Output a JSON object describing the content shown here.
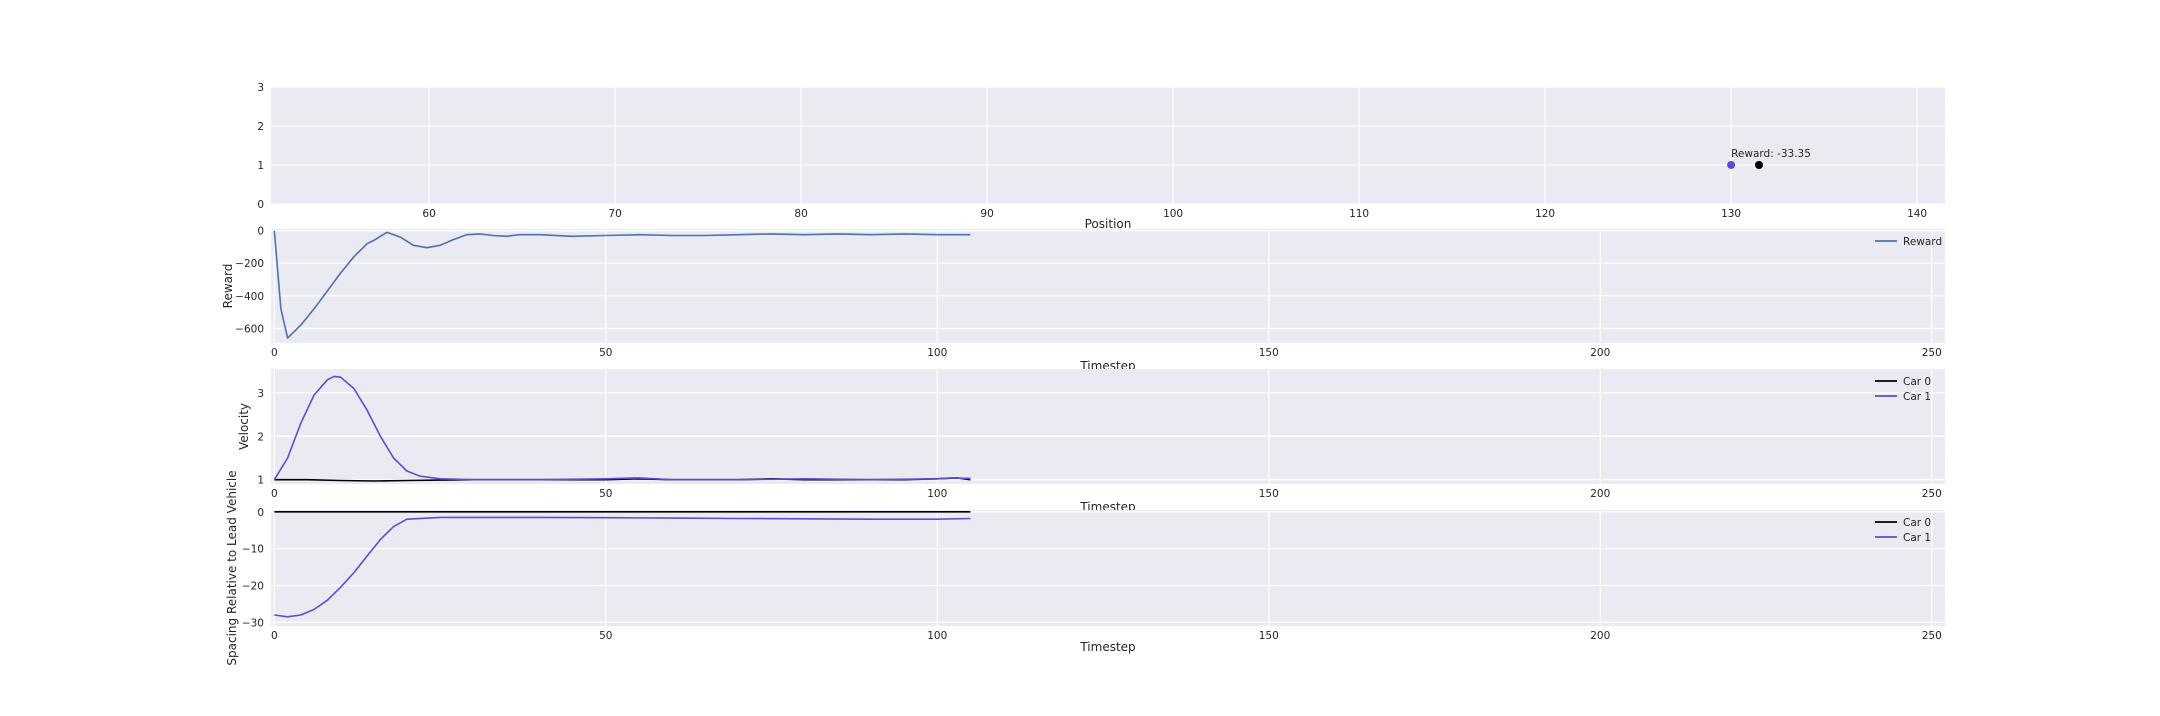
{
  "chart_data": [
    {
      "id": "position",
      "type": "scatter",
      "xlabel": "Position",
      "ylabel": "",
      "xlim": [
        51.5,
        141.5
      ],
      "ylim": [
        0,
        3
      ],
      "xticks": [
        60,
        70,
        80,
        90,
        100,
        110,
        120,
        130,
        140
      ],
      "yticks": [
        0,
        1,
        2,
        3
      ],
      "points": [
        {
          "x": 130.0,
          "y": 1,
          "color": "#5a4fcf"
        },
        {
          "x": 131.5,
          "y": 1,
          "color": "#000000"
        }
      ],
      "annotation": {
        "text": "Reward: -33.35",
        "x": 130.0,
        "y": 1.1
      }
    },
    {
      "id": "reward",
      "type": "line",
      "xlabel": "Timestep",
      "ylabel": "Reward",
      "xlim": [
        -0.5,
        252
      ],
      "ylim": [
        -690,
        10
      ],
      "xticks": [
        0,
        50,
        100,
        150,
        200,
        250
      ],
      "yticks": [
        0,
        -200,
        -400,
        -600
      ],
      "legend_position": "top-right",
      "series": [
        {
          "name": "Reward",
          "color": "#4c72b0",
          "x": [
            0,
            1,
            2,
            4,
            6,
            8,
            10,
            12,
            14,
            15,
            17,
            19,
            21,
            23,
            25,
            27,
            29,
            31,
            33,
            35,
            37,
            40,
            45,
            50,
            55,
            60,
            65,
            70,
            75,
            80,
            85,
            90,
            95,
            100,
            105
          ],
          "y": [
            0,
            -480,
            -660,
            -580,
            -480,
            -370,
            -260,
            -160,
            -80,
            -60,
            -10,
            -40,
            -90,
            -105,
            -90,
            -55,
            -25,
            -20,
            -30,
            -35,
            -25,
            -25,
            -35,
            -30,
            -25,
            -30,
            -30,
            -25,
            -20,
            -25,
            -20,
            -25,
            -20,
            -25,
            -25
          ]
        }
      ]
    },
    {
      "id": "velocity",
      "type": "line",
      "xlabel": "Timestep",
      "ylabel": "Velocity",
      "xlim": [
        -0.5,
        252
      ],
      "ylim": [
        0.9,
        3.55
      ],
      "xticks": [
        0,
        50,
        100,
        150,
        200,
        250
      ],
      "yticks": [
        1,
        2,
        3
      ],
      "legend_position": "top-right",
      "series": [
        {
          "name": "Car 0",
          "color": "#000000",
          "x": [
            0,
            5,
            10,
            15,
            20,
            25,
            30,
            40,
            50,
            55,
            60,
            70,
            75,
            80,
            90,
            95,
            100,
            103,
            105
          ],
          "y": [
            1.0,
            1.0,
            0.98,
            0.97,
            0.98,
            0.99,
            1.0,
            1.0,
            1.0,
            1.02,
            1.0,
            1.0,
            1.02,
            1.0,
            1.0,
            1.0,
            1.02,
            1.04,
            1.0
          ]
        },
        {
          "name": "Car 1",
          "color": "#5a4fcf",
          "x": [
            0,
            2,
            4,
            6,
            8,
            9,
            10,
            12,
            14,
            16,
            18,
            20,
            22,
            25,
            30,
            40,
            50,
            55,
            60,
            70,
            80,
            90,
            100,
            102,
            105
          ],
          "y": [
            1.0,
            1.5,
            2.3,
            2.95,
            3.3,
            3.38,
            3.36,
            3.1,
            2.6,
            2.0,
            1.5,
            1.2,
            1.08,
            1.02,
            1.0,
            1.0,
            1.02,
            1.04,
            1.0,
            1.0,
            1.02,
            1.0,
            1.02,
            1.04,
            1.03
          ]
        }
      ]
    },
    {
      "id": "spacing",
      "type": "line",
      "xlabel": "Timestep",
      "ylabel": "Spacing Relative to Lead Vehicle",
      "xlim": [
        -0.5,
        252
      ],
      "ylim": [
        -31,
        0.5
      ],
      "xticks": [
        0,
        50,
        100,
        150,
        200,
        250
      ],
      "yticks": [
        0,
        -10,
        -20,
        -30
      ],
      "legend_position": "top-right",
      "series": [
        {
          "name": "Car 0",
          "color": "#000000",
          "x": [
            0,
            105
          ],
          "y": [
            0,
            0
          ]
        },
        {
          "name": "Car 1",
          "color": "#5a4fcf",
          "x": [
            0,
            2,
            4,
            6,
            8,
            10,
            12,
            14,
            16,
            18,
            20,
            25,
            30,
            40,
            50,
            60,
            70,
            80,
            90,
            100,
            105
          ],
          "y": [
            -28,
            -28.5,
            -28,
            -26.5,
            -24,
            -20.5,
            -16.5,
            -12,
            -7.5,
            -4,
            -2,
            -1.5,
            -1.5,
            -1.5,
            -1.6,
            -1.7,
            -1.8,
            -1.9,
            -2.0,
            -2.0,
            -1.8
          ]
        }
      ]
    }
  ]
}
